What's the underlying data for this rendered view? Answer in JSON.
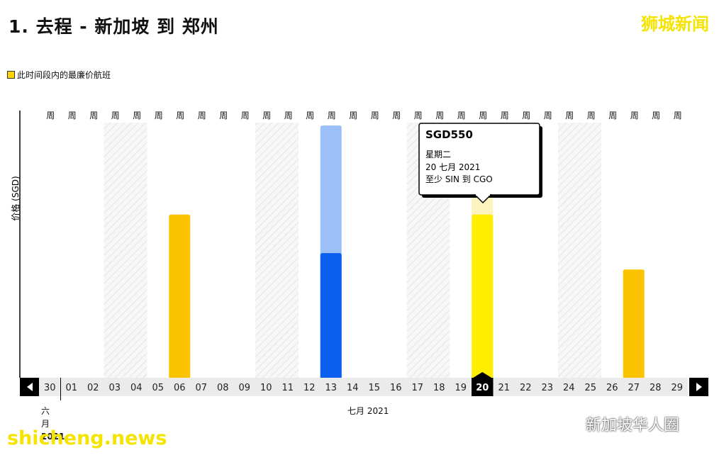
{
  "header": {
    "title": "1. 去程 - 新加坡 到 郑州",
    "brand": "狮城新闻"
  },
  "legend": {
    "label": "此时间段内的最廉价航班",
    "color": "#ffd400"
  },
  "tooltip": {
    "price": "SGD550",
    "weekday": "星期二",
    "date": "20 七月 2021",
    "route": "至少 SIN 到 CGO"
  },
  "months": {
    "june_chars": [
      "六",
      "月",
      "2021"
    ],
    "july": "七月 2021"
  },
  "watermarks": {
    "site": "shicheng.news",
    "account": "新加坡华人圈"
  },
  "nav": {
    "prev_icon": "chevron-left-icon",
    "next_icon": "chevron-right-icon"
  },
  "chart_data": {
    "type": "bar",
    "ylabel": "价格 (SGD)",
    "week_label": "周",
    "categories": [
      "30",
      "01",
      "02",
      "03",
      "04",
      "05",
      "06",
      "07",
      "08",
      "09",
      "10",
      "11",
      "12",
      "13",
      "14",
      "15",
      "16",
      "17",
      "18",
      "19",
      "20",
      "21",
      "22",
      "23",
      "24",
      "25",
      "26",
      "27",
      "28",
      "29"
    ],
    "weekend_shaded": [
      "03",
      "04",
      "10",
      "11",
      "17",
      "18",
      "24",
      "25"
    ],
    "selected": "20",
    "ylim": [
      0,
      860
    ],
    "bars": [
      {
        "date": "06",
        "value": 550,
        "color": "#fcc400"
      },
      {
        "date": "13",
        "value": 850,
        "value_low": 420,
        "color_top": "#9ac0f7",
        "color": "#0a5fef"
      },
      {
        "date": "20",
        "value": 550,
        "value_bg": 610,
        "color_bg": "#fcf3bf",
        "color": "#ffee00"
      },
      {
        "date": "27",
        "value": 365,
        "color": "#fcc400"
      }
    ]
  }
}
